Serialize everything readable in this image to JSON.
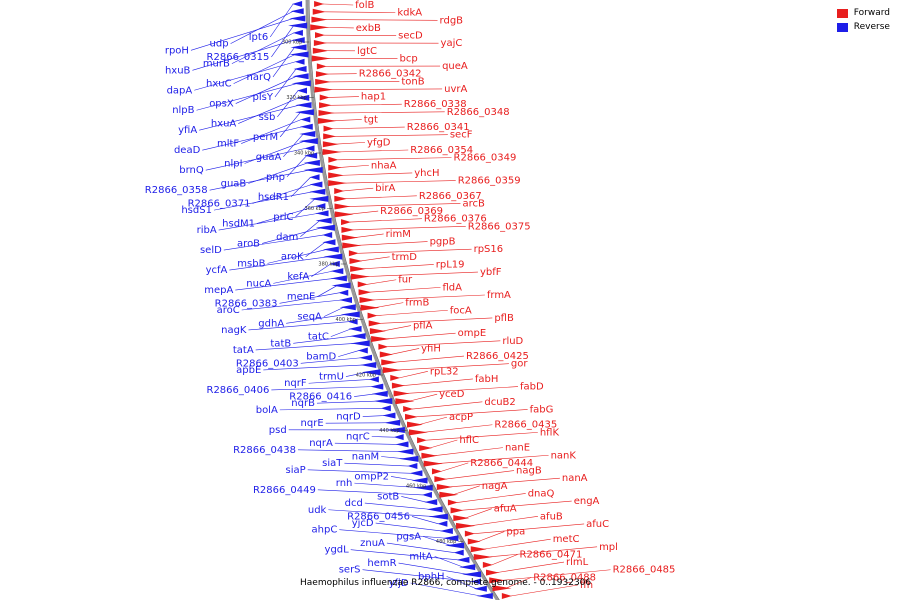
{
  "title": "Haemophilus influenzae R2866, complete genome. - 0..1932306",
  "legend": [
    {
      "label": "Forward",
      "color": "#e81e1e"
    },
    {
      "label": "Reverse",
      "color": "#1e1ee8"
    }
  ],
  "colors": {
    "forward": "#e81e1e",
    "reverse": "#1e1ee8",
    "backbone": "#999999"
  },
  "ticks": [
    "300 kbp",
    "320 kbp",
    "340 kbp",
    "360 kbp",
    "380 kbp",
    "400 kbp",
    "420 kbp",
    "440 kbp",
    "460 kbp",
    "480 kbp"
  ],
  "forward_genes": [
    "folB",
    "kdkA",
    "rdgB",
    "exbB",
    "secD",
    "yajC",
    "lgtC",
    "bcp",
    "queA",
    "R2866_0342",
    "tonB",
    "uvrA",
    "hap1",
    "R2866_0338",
    "R2866_0348",
    "tgt",
    "R2866_0341",
    "secF",
    "yfgD",
    "R2866_0354",
    "R2866_0349",
    "nhaA",
    "yhcH",
    "R2866_0359",
    "birA",
    "R2866_0367",
    "arcB",
    "R2866_0369",
    "R2866_0376",
    "R2866_0375",
    "rimM",
    "pgpB",
    "rpS16",
    "trmD",
    "rpL19",
    "ybfF",
    "fur",
    "fldA",
    "frmA",
    "frmB",
    "focA",
    "pflB",
    "pflA",
    "ompE",
    "rluD",
    "yfiH",
    "R2866_0425",
    "gor",
    "rpL32",
    "fabH",
    "fabD",
    "yceD",
    "dcuB2",
    "fabG",
    "acpP",
    "R2866_0435",
    "hflK",
    "hflC",
    "nanE",
    "nanK",
    "R2866_0444",
    "nagB",
    "nanA",
    "nagA",
    "dnaQ",
    "engA",
    "afuA",
    "afuB",
    "afuC",
    "ppa",
    "metC",
    "mpl",
    "R2866_0471",
    "rlmL",
    "R2866_0485",
    "R2866_0488",
    "ffh"
  ],
  "reverse_genes": [
    "lpt6",
    "udp",
    "rpoH",
    "R2866_0315",
    "murB",
    "hxuB",
    "narQ",
    "hxuC",
    "dapA",
    "plsY",
    "opsX",
    "nlpB",
    "ssb",
    "hxuA",
    "yfiA",
    "perM",
    "mltF",
    "deaD",
    "guaA",
    "nlpI",
    "brnQ",
    "pnp",
    "guaB",
    "R2866_0358",
    "hsdR1",
    "R2866_0371",
    "hsdS1",
    "prlC",
    "hsdM1",
    "ribA",
    "dam",
    "aroB",
    "selD",
    "aroK",
    "msbB",
    "ycfA",
    "kefA",
    "nucA",
    "mepA",
    "menE",
    "R2866_0383",
    "aroC",
    "seqA",
    "gdhA",
    "nagK",
    "tatC",
    "tatB",
    "tatA",
    "bamD",
    "R2866_0403",
    "apbE",
    "trmU",
    "nqrF",
    "R2866_0406",
    "R2866_0416",
    "nqrB",
    "bolA",
    "nqrD",
    "nqrE",
    "psd",
    "nqrC",
    "nqrA",
    "R2866_0438",
    "nanM",
    "siaT",
    "siaP",
    "ompP2",
    "rnh",
    "R2866_0449",
    "sotB",
    "dcd",
    "udk",
    "R2866_0456",
    "yjcD",
    "ahpC",
    "pgsA",
    "znuA",
    "ygdL",
    "mltA",
    "hemR",
    "serS",
    "bphH",
    "yfjD"
  ]
}
